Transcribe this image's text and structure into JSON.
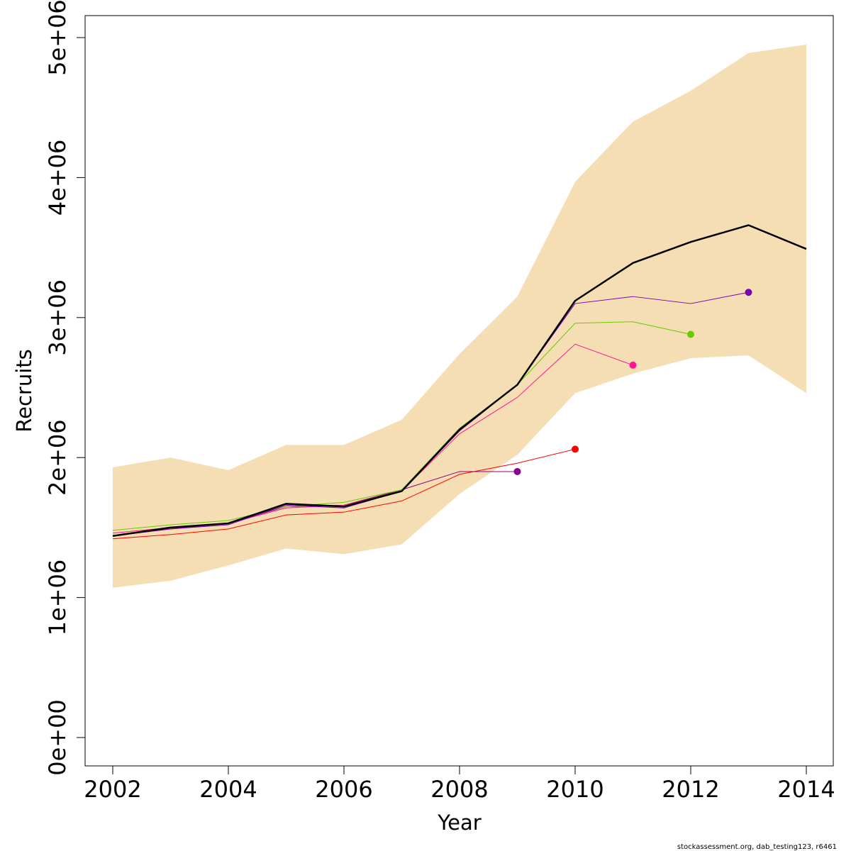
{
  "chart_data": {
    "type": "line",
    "xlabel": "Year",
    "ylabel": "Recruits",
    "xlim": [
      2002,
      2014
    ],
    "ylim": [
      0,
      5000000
    ],
    "x_ticks": [
      2002,
      2004,
      2006,
      2008,
      2010,
      2012,
      2014
    ],
    "x_tick_labels": [
      "2002",
      "2004",
      "2006",
      "2008",
      "2010",
      "2012",
      "2014"
    ],
    "y_ticks": [
      0,
      1000000,
      2000000,
      3000000,
      4000000,
      5000000
    ],
    "y_tick_labels": [
      "0e+00",
      "1e+06",
      "2e+06",
      "3e+06",
      "4e+06",
      "5e+06"
    ],
    "grid": false,
    "confidence_band": {
      "color": "#F5DEB3",
      "x": [
        2002,
        2003,
        2004,
        2005,
        2006,
        2007,
        2008,
        2009,
        2010,
        2011,
        2012,
        2013,
        2014
      ],
      "lower": [
        1070000,
        1120000,
        1230000,
        1350000,
        1310000,
        1380000,
        1740000,
        2020000,
        2460000,
        2600000,
        2710000,
        2730000,
        2460000
      ],
      "upper": [
        1930000,
        2000000,
        1910000,
        2090000,
        2090000,
        2270000,
        2740000,
        3150000,
        3970000,
        4400000,
        4620000,
        4890000,
        4950000
      ]
    },
    "series": [
      {
        "color": "#000000",
        "width": 2.5,
        "end_marker": false,
        "x": [
          2002,
          2003,
          2004,
          2005,
          2006,
          2007,
          2008,
          2009,
          2010,
          2011,
          2012,
          2013,
          2014
        ],
        "values": [
          1440000,
          1500000,
          1530000,
          1670000,
          1650000,
          1760000,
          2200000,
          2520000,
          3120000,
          3390000,
          3540000,
          3660000,
          3490000
        ]
      },
      {
        "color": "#FF0000",
        "width": 1,
        "end_marker": true,
        "x": [
          2002,
          2003,
          2004,
          2005,
          2006,
          2007,
          2008,
          2009,
          2010
        ],
        "values": [
          1420000,
          1450000,
          1490000,
          1590000,
          1610000,
          1690000,
          1880000,
          1960000,
          2060000
        ]
      },
      {
        "color": "#8B008B",
        "width": 1,
        "end_marker": true,
        "x": [
          2002,
          2003,
          2004,
          2005,
          2006,
          2007,
          2008,
          2009
        ],
        "values": [
          1440000,
          1490000,
          1530000,
          1650000,
          1660000,
          1770000,
          1900000,
          1900000
        ]
      },
      {
        "color": "#FF1493",
        "width": 1,
        "end_marker": true,
        "x": [
          2002,
          2003,
          2004,
          2005,
          2006,
          2007,
          2008,
          2009,
          2010,
          2011
        ],
        "values": [
          1460000,
          1500000,
          1530000,
          1640000,
          1660000,
          1760000,
          2170000,
          2430000,
          2810000,
          2660000
        ]
      },
      {
        "color": "#66CC00",
        "width": 1,
        "end_marker": true,
        "x": [
          2002,
          2003,
          2004,
          2005,
          2006,
          2007,
          2008,
          2009,
          2010,
          2011,
          2012
        ],
        "values": [
          1480000,
          1520000,
          1550000,
          1650000,
          1680000,
          1770000,
          2210000,
          2520000,
          2960000,
          2970000,
          2880000
        ]
      },
      {
        "color": "#7B00B8",
        "width": 1,
        "end_marker": true,
        "x": [
          2002,
          2003,
          2004,
          2005,
          2006,
          2007,
          2008,
          2009,
          2010,
          2011,
          2012,
          2013
        ],
        "values": [
          1440000,
          1490000,
          1520000,
          1660000,
          1640000,
          1760000,
          2190000,
          2520000,
          3100000,
          3150000,
          3100000,
          3180000
        ]
      }
    ]
  },
  "credit": "stockassessment.org, dab_testing123, r6461"
}
